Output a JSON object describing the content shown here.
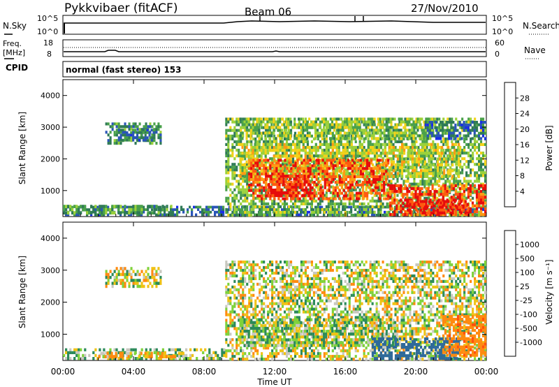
{
  "header": {
    "station": "Pykkvibaer (fitACF)",
    "beam": "Beam 06",
    "date": "27/Nov/2010"
  },
  "nsky_panel": {
    "left_label": "N.Sky",
    "right_label": "N.Search",
    "left_ticks": [
      "10^5",
      "10^0"
    ],
    "right_ticks": [
      "10^5",
      "10^0"
    ]
  },
  "freq_panel": {
    "left_label_1": "Freq.",
    "left_label_2": "[MHz]",
    "right_label": "Nave",
    "left_ticks": [
      "18",
      "8"
    ],
    "right_ticks": [
      "60",
      "0"
    ]
  },
  "cpid": {
    "label": "CPID",
    "value": "normal (fast stereo) 153"
  },
  "colors": {
    "power_scale": [
      "#1a2ee6",
      "#2a55b8",
      "#2f7a56",
      "#4aa14a",
      "#9bd13a",
      "#f2d21a",
      "#ff9a14",
      "#ff5a10",
      "#e60c0c"
    ],
    "velocity_scale": [
      "#1a3fa8",
      "#2f6a9a",
      "#2b8a5a",
      "#7ed23a",
      "#c8c8bf",
      "#f0c214",
      "#ff8a10",
      "#ff5010",
      "#e60c0c"
    ]
  },
  "chart_data": [
    {
      "type": "heatmap",
      "name": "power",
      "ylabel": "Slant Range [km]",
      "ylim": [
        180,
        4500
      ],
      "yticks": [
        "4000",
        "3000",
        "2000",
        "1000"
      ],
      "xlim": [
        0,
        24
      ],
      "colorbar": {
        "label": "Power [dB]",
        "ticks": [
          "28",
          "24",
          "20",
          "16",
          "12",
          "8",
          "4"
        ],
        "range": [
          0,
          32
        ]
      },
      "regions": [
        {
          "x0": 0.0,
          "x1": 24.0,
          "y0": 200,
          "y1": 520,
          "value": 8
        },
        {
          "x0": 0.0,
          "x1": 6.2,
          "y0": 250,
          "y1": 550,
          "value": 12
        },
        {
          "x0": 2.4,
          "x1": 5.6,
          "y0": 2450,
          "y1": 3150,
          "value": 10
        },
        {
          "x0": 3.0,
          "x1": 5.2,
          "y0": 2550,
          "y1": 2950,
          "value": 8
        },
        {
          "x0": 9.2,
          "x1": 24.0,
          "y0": 180,
          "y1": 3300,
          "value": 14
        },
        {
          "x0": 10.0,
          "x1": 22.5,
          "y0": 1400,
          "y1": 2500,
          "value": 18
        },
        {
          "x0": 10.5,
          "x1": 18.5,
          "y0": 700,
          "y1": 2000,
          "value": 27
        },
        {
          "x0": 11.5,
          "x1": 14.0,
          "y0": 800,
          "y1": 1500,
          "value": 30
        },
        {
          "x0": 18.5,
          "x1": 24.0,
          "y0": 200,
          "y1": 1200,
          "value": 28
        },
        {
          "x0": 19.5,
          "x1": 23.0,
          "y0": 250,
          "y1": 700,
          "value": 30
        },
        {
          "x0": 10.0,
          "x1": 21.0,
          "y0": 2600,
          "y1": 3300,
          "value": 15
        },
        {
          "x0": 20.5,
          "x1": 24.0,
          "y0": 2600,
          "y1": 3200,
          "value": 7
        }
      ]
    },
    {
      "type": "heatmap",
      "name": "velocity",
      "ylabel": "Slant Range [km]",
      "xlabel": "Time UT",
      "ylim": [
        180,
        4500
      ],
      "yticks": [
        "4000",
        "3000",
        "2000",
        "1000"
      ],
      "xlim": [
        0,
        24
      ],
      "xticks": [
        "00:00",
        "04:00",
        "08:00",
        "12:00",
        "16:00",
        "20:00",
        "00:00"
      ],
      "colorbar": {
        "label": "Velocity [m s⁻¹]",
        "ticks": [
          "1000",
          "500",
          "100",
          "25",
          "-25",
          "-100",
          "-500",
          "-1000"
        ]
      },
      "regions": [
        {
          "x0": 0.0,
          "x1": 9.2,
          "y0": 200,
          "y1": 560,
          "value": 50
        },
        {
          "x0": 2.0,
          "x1": 7.0,
          "y0": 250,
          "y1": 450,
          "value": -80
        },
        {
          "x0": 2.4,
          "x1": 5.6,
          "y0": 2450,
          "y1": 3100,
          "value": 0
        },
        {
          "x0": 9.2,
          "x1": 24.0,
          "y0": 180,
          "y1": 3300,
          "value": 0
        },
        {
          "x0": 10.0,
          "x1": 19.0,
          "y0": 600,
          "y1": 1500,
          "value": 60
        },
        {
          "x0": 17.5,
          "x1": 22.5,
          "y0": 200,
          "y1": 900,
          "value": 700
        },
        {
          "x0": 21.5,
          "x1": 24.0,
          "y0": 300,
          "y1": 1600,
          "value": -400
        }
      ]
    }
  ],
  "xaxis": {
    "ticks": [
      "00:00",
      "04:00",
      "08:00",
      "12:00",
      "16:00",
      "20:00",
      "00:00"
    ],
    "label": "Time UT"
  }
}
